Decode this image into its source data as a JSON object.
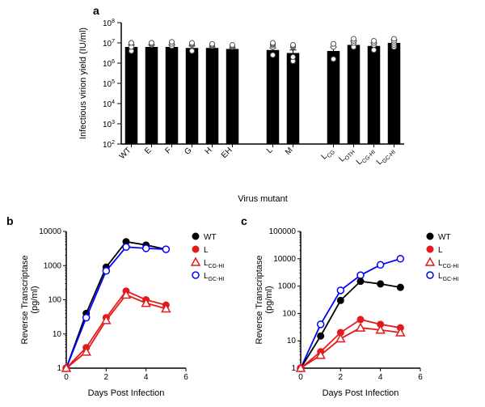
{
  "panel_a": {
    "label": "a",
    "type": "bar",
    "y_axis_label": "Infectious virion yield (IU/ml)",
    "y_min_exp": 2,
    "y_max_exp": 8,
    "y_ticks": [
      2,
      3,
      4,
      5,
      6,
      7,
      8
    ],
    "x_axis_label": "Virus mutant",
    "categories": [
      "WT",
      "E",
      "F",
      "G",
      "H",
      "EH",
      "",
      "L",
      "M",
      "",
      "L_CG",
      "L_OTH",
      "L_CG-HI",
      "L_GC-HI"
    ],
    "subscripts": [
      "",
      "",
      "",
      "",
      "",
      "",
      "",
      "",
      "",
      "",
      "CG",
      "OTH",
      "CG-HI",
      "GC-HI"
    ],
    "bars": [
      {
        "mean": 6.8,
        "err": 0.1,
        "points": [
          6.6,
          7.0,
          6.9,
          6.8,
          7.0
        ]
      },
      {
        "mean": 6.8,
        "err": 0.1,
        "points": [
          6.9,
          7.0,
          6.95,
          7.0
        ]
      },
      {
        "mean": 6.8,
        "err": 0.1,
        "points": [
          6.85,
          7.0,
          6.95,
          7.05
        ]
      },
      {
        "mean": 6.75,
        "err": 0.1,
        "points": [
          6.6,
          6.9,
          6.95,
          7.0
        ]
      },
      {
        "mean": 6.75,
        "err": 0.05,
        "points": [
          6.85,
          6.9,
          6.95
        ]
      },
      {
        "mean": 6.7,
        "err": 0.05,
        "points": [
          6.8,
          6.85,
          6.9
        ]
      },
      null,
      {
        "mean": 6.65,
        "err": 0.1,
        "points": [
          6.4,
          6.8,
          6.9,
          6.95,
          7.0
        ]
      },
      {
        "mean": 6.5,
        "err": 0.15,
        "points": [
          6.1,
          6.3,
          6.8,
          6.85,
          6.9
        ]
      },
      null,
      {
        "mean": 6.6,
        "err": 0.2,
        "points": [
          6.2,
          6.8,
          6.95
        ]
      },
      {
        "mean": 6.9,
        "err": 0.2,
        "points": [
          6.8,
          7.0,
          7.1,
          7.2
        ]
      },
      {
        "mean": 6.85,
        "err": 0.15,
        "points": [
          6.65,
          6.9,
          7.0,
          7.1
        ]
      },
      {
        "mean": 7.0,
        "err": 0.15,
        "points": [
          6.8,
          6.9,
          7.0,
          7.1,
          7.2
        ]
      }
    ],
    "bar_color": "#000000",
    "point_marker": "circle-open",
    "label_fontsize": 11,
    "tick_fontsize": 10,
    "axis_color": "#000000",
    "background_color": "#ffffff"
  },
  "panel_b": {
    "label": "b",
    "type": "line",
    "y_axis_label": "Reverse Transcriptase\n(pg/ml)",
    "y_min_exp": 0,
    "y_max_exp": 4,
    "y_ticks": [
      0,
      1,
      2,
      3,
      4
    ],
    "y_tick_labels": [
      "1",
      "10",
      "100",
      "1000",
      "10000"
    ],
    "x_axis_label": "Days Post Infection",
    "x_min": 0,
    "x_max": 6,
    "x_ticks": [
      0,
      2,
      4,
      6
    ],
    "legend": [
      {
        "label": "WT",
        "marker": "circle-filled",
        "color": "#000000"
      },
      {
        "label": "L",
        "marker": "circle-filled",
        "color": "#e41a1c"
      },
      {
        "label": "L_CG-HI",
        "sub": "CG-HI",
        "marker": "triangle-open",
        "color": "#e41a1c"
      },
      {
        "label": "L_GC-HI",
        "sub": "GC-HI",
        "marker": "circle-open",
        "color": "#0000ff"
      }
    ],
    "series": [
      {
        "color": "#000000",
        "marker": "circle-filled",
        "x": [
          0,
          1,
          2,
          3,
          4,
          5
        ],
        "y": [
          1,
          40,
          900,
          5000,
          4000,
          3000
        ]
      },
      {
        "color": "#0000ff",
        "marker": "circle-open",
        "x": [
          0,
          1,
          2,
          3,
          4,
          5
        ],
        "y": [
          1,
          30,
          700,
          3500,
          3200,
          3000
        ]
      },
      {
        "color": "#e41a1c",
        "marker": "circle-filled",
        "x": [
          0,
          1,
          2,
          3,
          4,
          5
        ],
        "y": [
          1,
          4,
          30,
          180,
          100,
          70
        ]
      },
      {
        "color": "#e41a1c",
        "marker": "triangle-open",
        "x": [
          0,
          1,
          2,
          3,
          4,
          5
        ],
        "y": [
          1,
          3,
          25,
          140,
          80,
          55
        ]
      }
    ],
    "label_fontsize": 11,
    "tick_fontsize": 10,
    "axis_color": "#000000",
    "background_color": "#ffffff"
  },
  "panel_c": {
    "label": "c",
    "type": "line",
    "y_axis_label": "Reverse Transcriptase\n(pg/ml)",
    "y_min_exp": 0,
    "y_max_exp": 5,
    "y_ticks": [
      0,
      1,
      2,
      3,
      4,
      5
    ],
    "y_tick_labels": [
      "1",
      "10",
      "100",
      "1000",
      "10000",
      "100000"
    ],
    "x_axis_label": "Days Post Infection",
    "x_min": 0,
    "x_max": 6,
    "x_ticks": [
      0,
      2,
      4,
      6
    ],
    "legend": [
      {
        "label": "WT",
        "marker": "circle-filled",
        "color": "#000000"
      },
      {
        "label": "L",
        "marker": "circle-filled",
        "color": "#e41a1c"
      },
      {
        "label": "L_CG-HI",
        "sub": "CG-HI",
        "marker": "triangle-open",
        "color": "#e41a1c"
      },
      {
        "label": "L_GC-HI",
        "sub": "GC-HI",
        "marker": "circle-open",
        "color": "#0000ff"
      }
    ],
    "series": [
      {
        "color": "#0000ff",
        "marker": "circle-open",
        "x": [
          0,
          1,
          2,
          3,
          4,
          5
        ],
        "y": [
          1,
          40,
          700,
          2500,
          6000,
          10000
        ]
      },
      {
        "color": "#000000",
        "marker": "circle-filled",
        "x": [
          0,
          1,
          2,
          3,
          4,
          5
        ],
        "y": [
          1,
          15,
          300,
          1500,
          1200,
          900
        ]
      },
      {
        "color": "#e41a1c",
        "marker": "circle-filled",
        "x": [
          0,
          1,
          2,
          3,
          4,
          5
        ],
        "y": [
          1,
          4,
          20,
          60,
          40,
          30
        ]
      },
      {
        "color": "#e41a1c",
        "marker": "triangle-open",
        "x": [
          0,
          1,
          2,
          3,
          4,
          5
        ],
        "y": [
          1,
          3,
          12,
          30,
          25,
          20
        ]
      }
    ],
    "label_fontsize": 11,
    "tick_fontsize": 10,
    "axis_color": "#000000",
    "background_color": "#ffffff"
  }
}
